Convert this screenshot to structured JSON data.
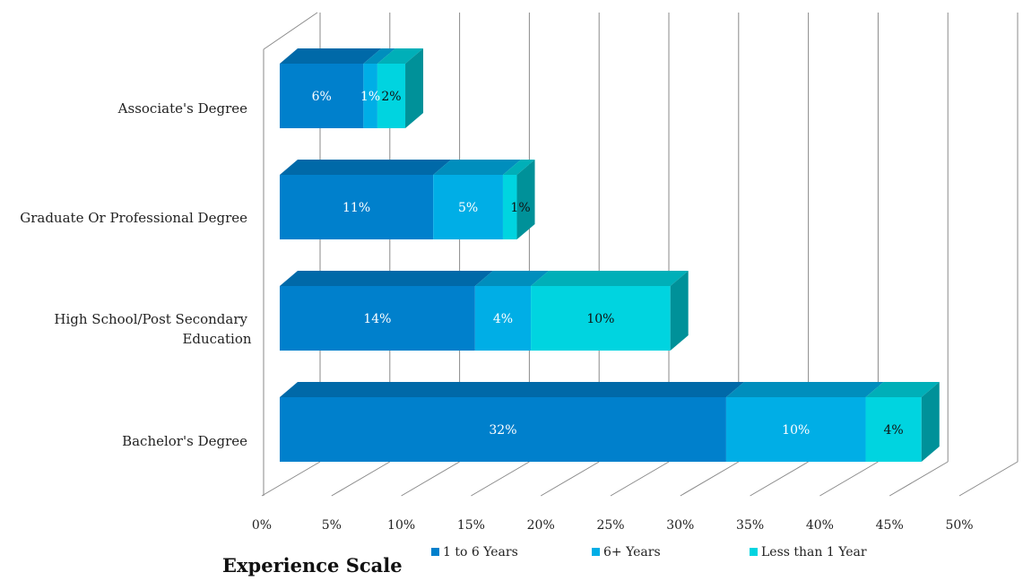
{
  "chart_data": {
    "type": "bar",
    "orientation": "horizontal",
    "stacked": true,
    "three_d": true,
    "categories": [
      "Associate's Degree",
      "Graduate Or Professional Degree",
      "High School/Post Secondary Education",
      "Bachelor's Degree"
    ],
    "category_lines": [
      [
        "Associate's Degree"
      ],
      [
        "Graduate Or Professional Degree"
      ],
      [
        "High School/Post Secondary",
        "Education"
      ],
      [
        "Bachelor's Degree"
      ]
    ],
    "series": [
      {
        "name": "1 to 6 Years",
        "values": [
          6,
          11,
          14,
          32
        ],
        "labels": [
          "6%",
          "11%",
          "14%",
          "32%"
        ],
        "color": "#0080CC",
        "top_color": "#0069A8",
        "side_color": "#00598F",
        "label_color": "#FFFFFF"
      },
      {
        "name": "6+ Years",
        "values": [
          1,
          5,
          4,
          10
        ],
        "labels": [
          "1%",
          "5%",
          "4%",
          "10%"
        ],
        "color": "#00AEE6",
        "top_color": "#008EBD",
        "side_color": "#007AA3",
        "label_color": "#FFFFFF"
      },
      {
        "name": "Less than 1 Year",
        "values": [
          2,
          1,
          10,
          4
        ],
        "labels": [
          "2%",
          "1%",
          "10%",
          "4%"
        ],
        "color": "#00D4E0",
        "top_color": "#00AFB8",
        "side_color": "#009199",
        "label_color": "#111111"
      }
    ],
    "xlim": [
      0,
      50
    ],
    "x_ticks": [
      "0%",
      "5%",
      "10%",
      "15%",
      "20%",
      "25%",
      "30%",
      "35%",
      "40%",
      "45%",
      "50%"
    ],
    "xlabel": "",
    "ylabel": "",
    "grid": true,
    "legend_position": "bottom",
    "title": "Experience Scale",
    "title_position": "bottom-left"
  }
}
